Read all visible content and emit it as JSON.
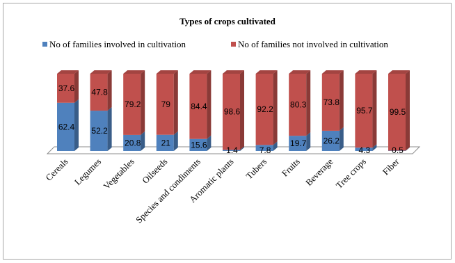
{
  "chart_data": {
    "type": "bar",
    "stacked": true,
    "percent_stacked": true,
    "three_d": true,
    "title": "Types of crops cultivated",
    "legend_position": "top",
    "categories": [
      "Cereals",
      "Legumes",
      "Vegetables",
      "Oilseeds",
      "Species and condiments",
      "Aromatic plants",
      "Tubers",
      "Fruits",
      "Beverage",
      "Tree crops",
      "Fiber"
    ],
    "series": [
      {
        "name": "No of families involved in cultivation",
        "color": "#4f81bd",
        "values": [
          62.4,
          52.2,
          20.8,
          21,
          15.6,
          1.4,
          7.8,
          19.7,
          26.2,
          4.3,
          0.5
        ],
        "labels": [
          "62.4",
          "52.2",
          "20.8",
          "21",
          "15.6",
          "1.4",
          "7.8",
          "19.7",
          "26.2",
          "4.3",
          "0.5"
        ]
      },
      {
        "name": "No of families not involved in cultivation",
        "color": "#c0504d",
        "values": [
          37.6,
          47.8,
          79.2,
          79,
          84.4,
          98.6,
          92.2,
          80.3,
          73.8,
          95.7,
          99.5
        ],
        "labels": [
          "37.6",
          "47.8",
          "79.2",
          "79",
          "84.4",
          "98.6",
          "92.2",
          "80.3",
          "73.8",
          "95.7",
          "99.5"
        ]
      }
    ],
    "xlabel": "",
    "ylabel": "",
    "ylim": [
      0,
      100
    ],
    "grid": false
  }
}
